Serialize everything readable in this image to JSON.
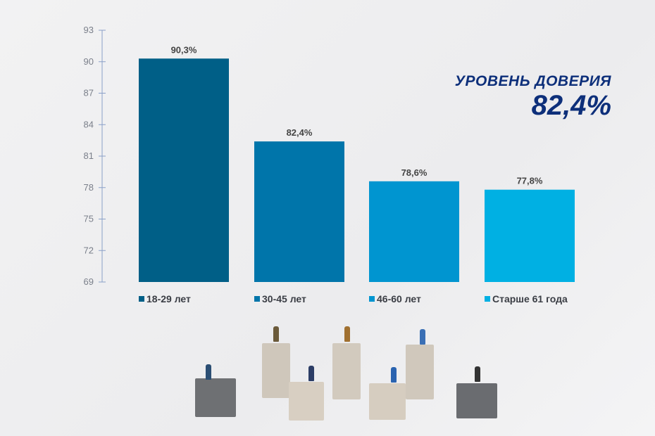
{
  "headline": {
    "label": "УРОВЕНЬ ДОВЕРИЯ",
    "value": "82,4%"
  },
  "chart_data": {
    "type": "bar",
    "categories": [
      "18-29 лет",
      "30-45 лет",
      "46-60 лет",
      "Старше 61 года"
    ],
    "values": [
      90.3,
      82.4,
      78.6,
      77.8
    ],
    "data_labels": [
      "90,3%",
      "82,4%",
      "78,6%",
      "77,8%"
    ],
    "colors": [
      "#005f87",
      "#0075aa",
      "#0095d0",
      "#00b0e3"
    ],
    "ylim": [
      69,
      93
    ],
    "yticks": [
      69,
      72,
      75,
      78,
      81,
      84,
      87,
      90,
      93
    ],
    "grid": false,
    "legend": "bottom",
    "xlabel": "",
    "ylabel": "",
    "title": ""
  }
}
